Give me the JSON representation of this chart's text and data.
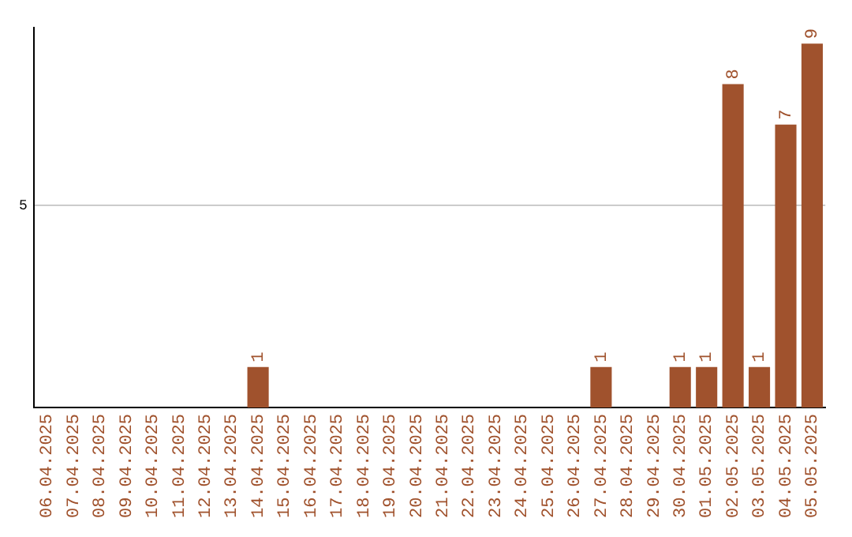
{
  "chart_data": {
    "type": "bar",
    "categories": [
      "06.04.2025",
      "07.04.2025",
      "08.04.2025",
      "09.04.2025",
      "10.04.2025",
      "11.04.2025",
      "12.04.2025",
      "13.04.2025",
      "14.04.2025",
      "15.04.2025",
      "16.04.2025",
      "17.04.2025",
      "18.04.2025",
      "19.04.2025",
      "20.04.2025",
      "21.04.2025",
      "22.04.2025",
      "23.04.2025",
      "24.04.2025",
      "25.04.2025",
      "26.04.2025",
      "27.04.2025",
      "28.04.2025",
      "29.04.2025",
      "30.04.2025",
      "01.05.2025",
      "02.05.2025",
      "03.05.2025",
      "04.05.2025",
      "05.05.2025"
    ],
    "values": [
      0,
      0,
      0,
      0,
      0,
      0,
      0,
      0,
      1,
      0,
      0,
      0,
      0,
      0,
      0,
      0,
      0,
      0,
      0,
      0,
      0,
      1,
      0,
      0,
      1,
      1,
      8,
      1,
      7,
      9
    ],
    "value_labels": [
      null,
      null,
      null,
      null,
      null,
      null,
      null,
      null,
      "1",
      null,
      null,
      null,
      null,
      null,
      null,
      null,
      null,
      null,
      null,
      null,
      null,
      "1",
      null,
      null,
      "1",
      "1",
      "8",
      "1",
      "7",
      "9"
    ],
    "color": "#a0522d",
    "ylim": [
      0,
      9.4
    ],
    "yticks": [
      5
    ],
    "grid": "y",
    "legend": false
  }
}
